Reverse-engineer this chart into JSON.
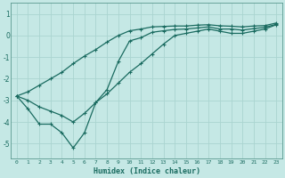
{
  "xlabel": "Humidex (Indice chaleur)",
  "ylabel": "",
  "bg_color": "#c5e8e5",
  "grid_color": "#aad4d0",
  "line_color": "#1a6b60",
  "spine_color": "#5a9a90",
  "xlim": [
    -0.5,
    23.5
  ],
  "ylim": [
    -5.7,
    1.5
  ],
  "yticks": [
    1,
    0,
    -1,
    -2,
    -3,
    -4,
    -5
  ],
  "xticks": [
    0,
    1,
    2,
    3,
    4,
    5,
    6,
    7,
    8,
    9,
    10,
    11,
    12,
    13,
    14,
    15,
    16,
    17,
    18,
    19,
    20,
    21,
    22,
    23
  ],
  "series1_x": [
    0,
    1,
    2,
    3,
    4,
    5,
    6,
    7,
    8,
    9,
    10,
    11,
    12,
    13,
    14,
    15,
    16,
    17,
    18,
    19,
    20,
    21,
    22,
    23
  ],
  "series1_y": [
    -2.8,
    -3.4,
    -4.1,
    -4.1,
    -4.5,
    -5.2,
    -4.5,
    -3.1,
    -2.5,
    -1.2,
    -0.25,
    -0.1,
    0.15,
    0.22,
    0.28,
    0.3,
    0.35,
    0.4,
    0.3,
    0.3,
    0.25,
    0.32,
    0.38,
    0.52
  ],
  "series2_x": [
    0,
    1,
    2,
    3,
    4,
    5,
    6,
    7,
    8,
    9,
    10,
    11,
    12,
    13,
    14,
    15,
    16,
    17,
    18,
    19,
    20,
    21,
    22,
    23
  ],
  "series2_y": [
    -2.8,
    -3.0,
    -3.3,
    -3.5,
    -3.7,
    -4.0,
    -3.6,
    -3.1,
    -2.7,
    -2.2,
    -1.7,
    -1.3,
    -0.85,
    -0.4,
    0.0,
    0.1,
    0.2,
    0.3,
    0.2,
    0.1,
    0.1,
    0.2,
    0.3,
    0.5
  ],
  "series3_x": [
    0,
    1,
    2,
    3,
    4,
    5,
    6,
    7,
    8,
    9,
    10,
    11,
    12,
    13,
    14,
    15,
    16,
    17,
    18,
    19,
    20,
    21,
    22,
    23
  ],
  "series3_y": [
    -2.8,
    -2.6,
    -2.3,
    -2.0,
    -1.7,
    -1.3,
    -0.95,
    -0.65,
    -0.3,
    0.0,
    0.22,
    0.3,
    0.4,
    0.42,
    0.44,
    0.44,
    0.48,
    0.5,
    0.45,
    0.43,
    0.4,
    0.44,
    0.46,
    0.58
  ]
}
